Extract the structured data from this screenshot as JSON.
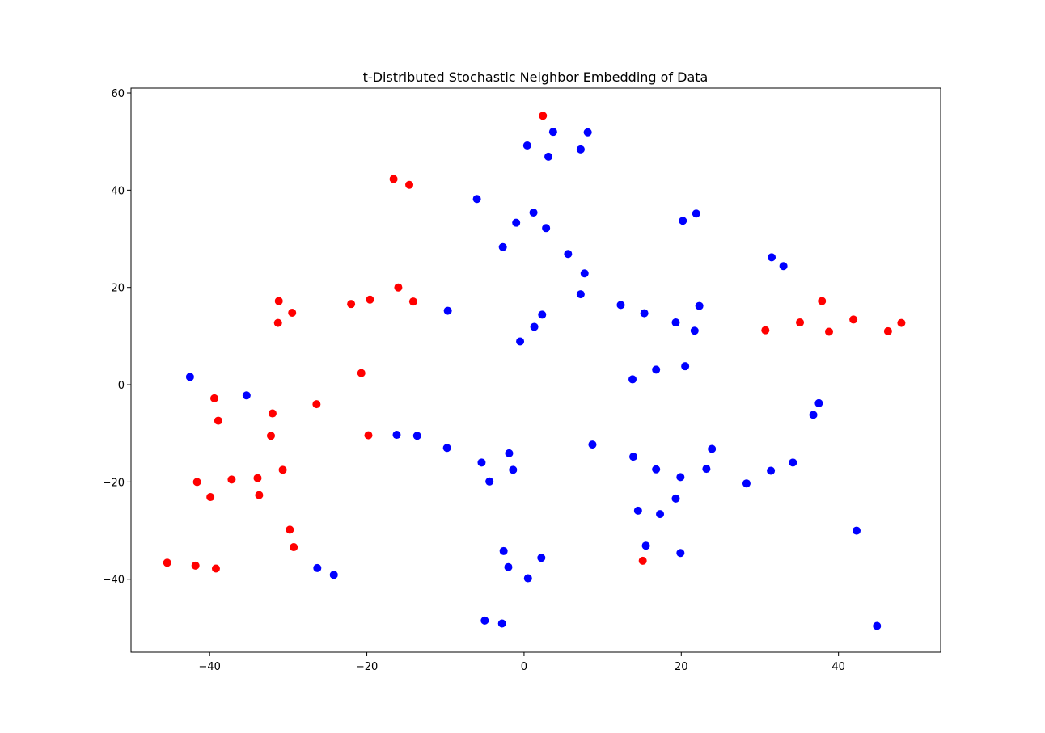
{
  "chart_data": {
    "type": "scatter",
    "title": "t-Distributed Stochastic Neighbor Embedding of Data",
    "xlabel": "",
    "ylabel": "",
    "xlim": [
      -50,
      53
    ],
    "ylim": [
      -55,
      61
    ],
    "grid": false,
    "x_ticks": [
      -40,
      -20,
      0,
      20,
      40
    ],
    "y_ticks": [
      -40,
      -20,
      0,
      20,
      40,
      60
    ],
    "x_tick_labels": [
      "−40",
      "−20",
      "0",
      "20",
      "40"
    ],
    "y_tick_labels": [
      "−40",
      "−20",
      "0",
      "20",
      "40",
      "60"
    ],
    "series": [
      {
        "color": "#ff0000",
        "points": [
          [
            2.4,
            55.3
          ],
          [
            -16.6,
            42.3
          ],
          [
            -14.6,
            41.1
          ],
          [
            -31.2,
            17.2
          ],
          [
            -29.5,
            14.8
          ],
          [
            -31.3,
            12.7
          ],
          [
            -22.0,
            16.6
          ],
          [
            -19.6,
            17.5
          ],
          [
            -16.0,
            20.0
          ],
          [
            -14.1,
            17.1
          ],
          [
            -20.7,
            2.4
          ],
          [
            -39.4,
            -2.8
          ],
          [
            -38.9,
            -7.4
          ],
          [
            -32.0,
            -5.9
          ],
          [
            -26.4,
            -4.0
          ],
          [
            -32.2,
            -10.5
          ],
          [
            -19.8,
            -10.4
          ],
          [
            -41.6,
            -20.0
          ],
          [
            -37.2,
            -19.5
          ],
          [
            -33.9,
            -19.2
          ],
          [
            -30.7,
            -17.5
          ],
          [
            -39.9,
            -23.1
          ],
          [
            -33.7,
            -22.7
          ],
          [
            -29.8,
            -29.8
          ],
          [
            -29.3,
            -33.4
          ],
          [
            -45.4,
            -36.6
          ],
          [
            -41.8,
            -37.2
          ],
          [
            -39.2,
            -37.8
          ],
          [
            15.1,
            -36.2
          ],
          [
            30.7,
            11.2
          ],
          [
            35.1,
            12.8
          ],
          [
            37.9,
            17.2
          ],
          [
            38.8,
            10.9
          ],
          [
            41.9,
            13.4
          ],
          [
            46.3,
            11.0
          ],
          [
            48.0,
            12.7
          ]
        ]
      },
      {
        "color": "#0000ff",
        "points": [
          [
            0.4,
            49.2
          ],
          [
            3.7,
            52.0
          ],
          [
            8.1,
            51.9
          ],
          [
            7.2,
            48.4
          ],
          [
            3.1,
            46.9
          ],
          [
            -6.0,
            38.2
          ],
          [
            1.2,
            35.4
          ],
          [
            -1.0,
            33.3
          ],
          [
            2.8,
            32.2
          ],
          [
            -2.7,
            28.3
          ],
          [
            20.2,
            33.7
          ],
          [
            21.9,
            35.2
          ],
          [
            5.6,
            26.9
          ],
          [
            7.7,
            22.9
          ],
          [
            7.2,
            18.6
          ],
          [
            -9.7,
            15.2
          ],
          [
            2.3,
            14.4
          ],
          [
            1.3,
            11.9
          ],
          [
            -0.5,
            8.9
          ],
          [
            12.3,
            16.4
          ],
          [
            15.3,
            14.7
          ],
          [
            19.3,
            12.8
          ],
          [
            22.3,
            16.2
          ],
          [
            21.7,
            11.1
          ],
          [
            31.5,
            26.2
          ],
          [
            33.0,
            24.4
          ],
          [
            13.8,
            1.1
          ],
          [
            16.8,
            3.1
          ],
          [
            20.5,
            3.8
          ],
          [
            -42.5,
            1.6
          ],
          [
            -35.3,
            -2.2
          ],
          [
            -16.2,
            -10.3
          ],
          [
            -13.6,
            -10.5
          ],
          [
            -9.8,
            -13.0
          ],
          [
            8.7,
            -12.3
          ],
          [
            -1.9,
            -14.1
          ],
          [
            -5.4,
            -16.0
          ],
          [
            -1.4,
            -17.5
          ],
          [
            -4.4,
            -19.9
          ],
          [
            13.9,
            -14.8
          ],
          [
            16.8,
            -17.4
          ],
          [
            19.9,
            -19.0
          ],
          [
            23.2,
            -17.3
          ],
          [
            23.9,
            -13.2
          ],
          [
            28.3,
            -20.3
          ],
          [
            31.4,
            -17.7
          ],
          [
            34.2,
            -16.0
          ],
          [
            36.8,
            -6.2
          ],
          [
            37.5,
            -3.8
          ],
          [
            14.5,
            -25.9
          ],
          [
            17.3,
            -26.6
          ],
          [
            19.3,
            -23.4
          ],
          [
            15.5,
            -33.1
          ],
          [
            19.9,
            -34.6
          ],
          [
            -26.3,
            -37.7
          ],
          [
            -24.2,
            -39.1
          ],
          [
            -2.6,
            -34.2
          ],
          [
            -2.0,
            -37.5
          ],
          [
            2.2,
            -35.6
          ],
          [
            0.5,
            -39.8
          ],
          [
            -5.0,
            -48.5
          ],
          [
            -2.8,
            -49.1
          ],
          [
            42.3,
            -30.0
          ],
          [
            44.9,
            -49.6
          ]
        ]
      }
    ]
  }
}
